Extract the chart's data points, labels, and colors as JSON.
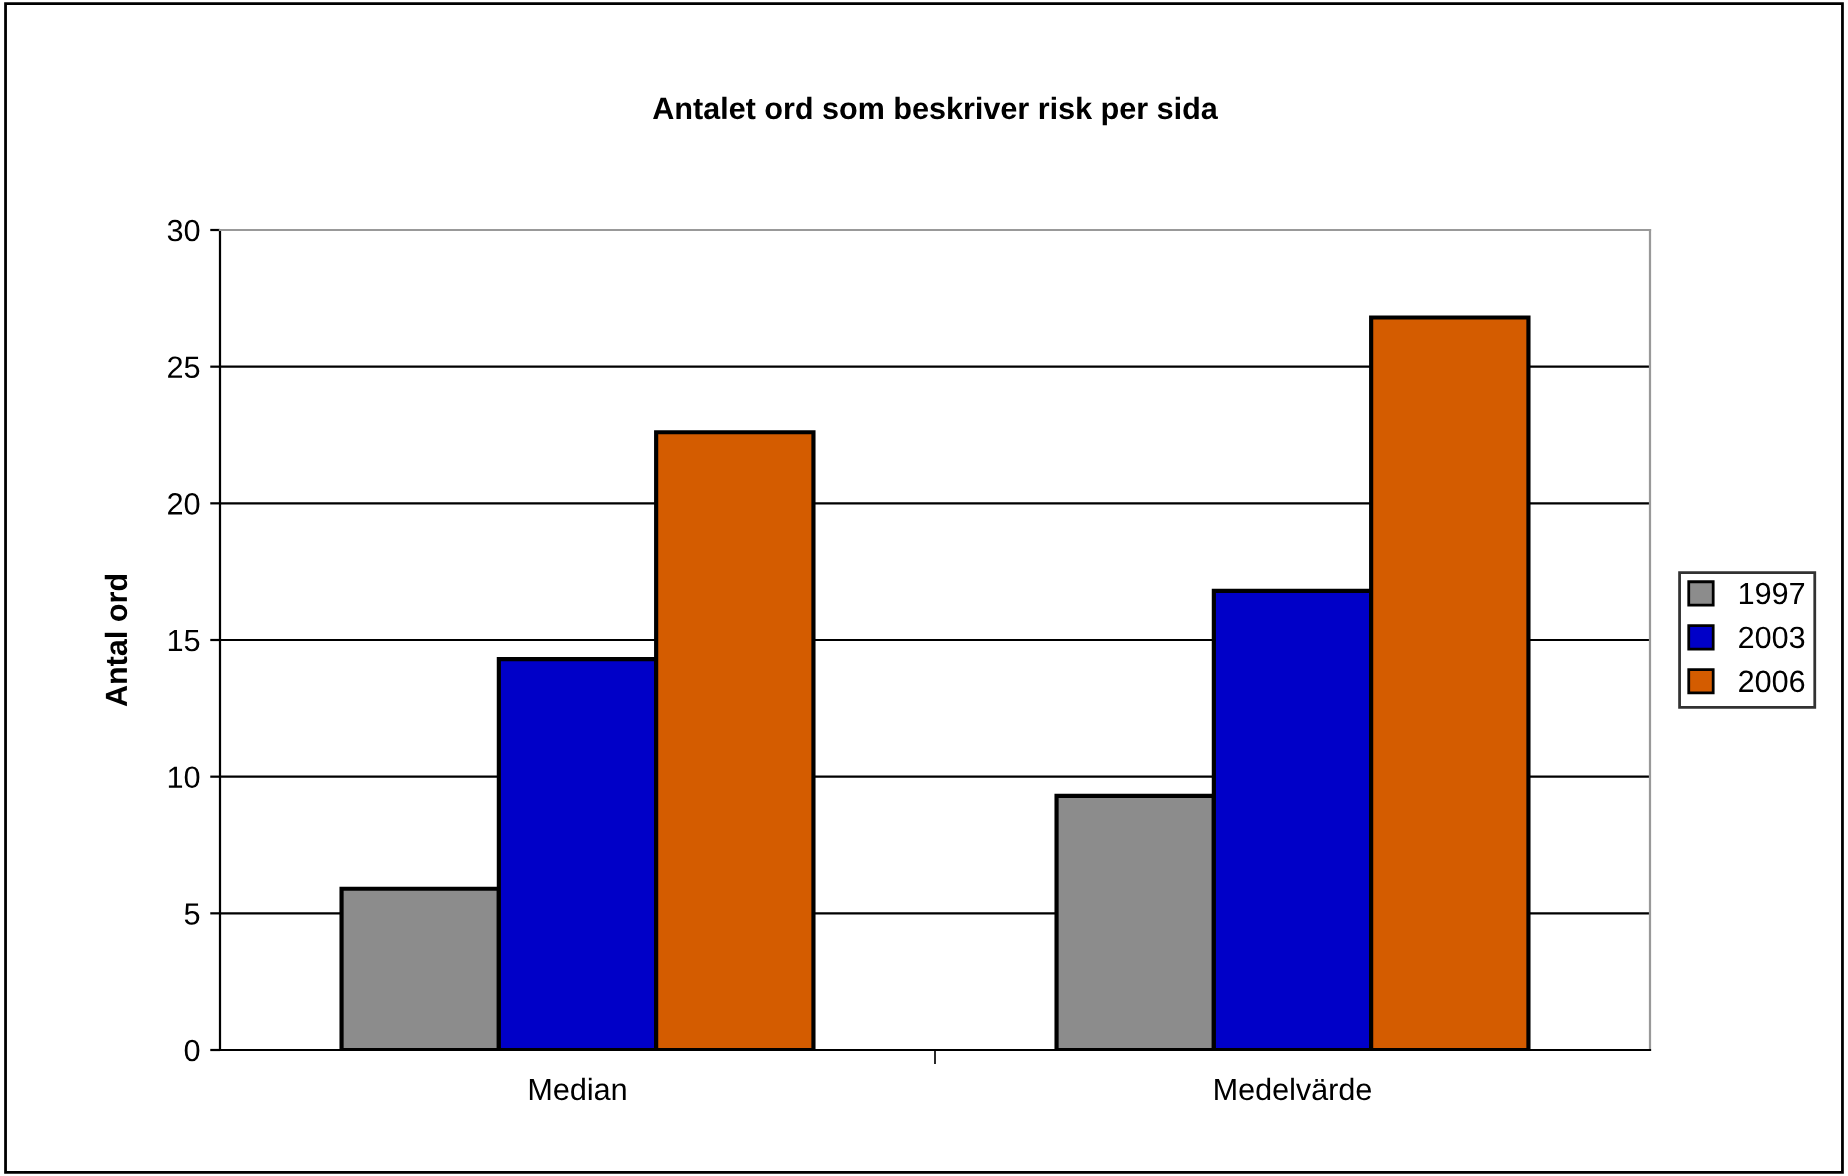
{
  "chart_data": {
    "type": "bar",
    "title": "Antalet ord som beskriver risk per sida",
    "ylabel": "Antal ord",
    "categories": [
      "Median",
      "Medelvärde"
    ],
    "series": [
      {
        "name": "1997",
        "color": "#8c8c8c",
        "values": [
          5.9,
          9.3
        ]
      },
      {
        "name": "2003",
        "color": "#0000c8",
        "values": [
          14.3,
          16.8
        ]
      },
      {
        "name": "2006",
        "color": "#d45c00",
        "values": [
          22.6,
          26.8
        ]
      }
    ],
    "ylim": [
      0,
      30
    ],
    "yticks": [
      0,
      5,
      10,
      15,
      20,
      25,
      30
    ],
    "grid": "y",
    "legend": "right"
  }
}
